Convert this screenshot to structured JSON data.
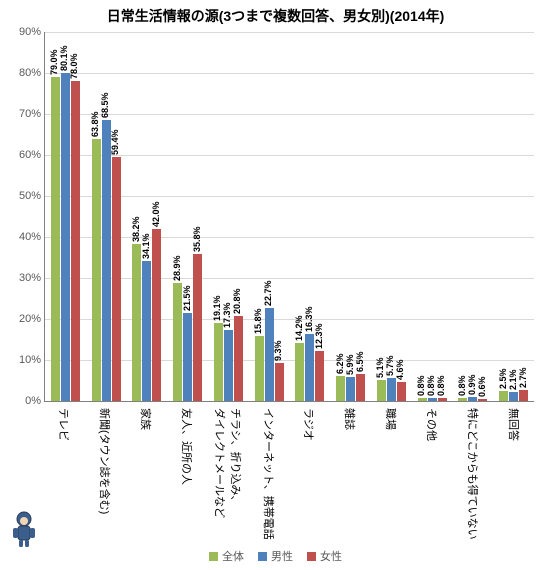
{
  "chart": {
    "type": "bar",
    "title": "日常生活情報の源(3つまで複数回答、男女別)(2014年)",
    "title_fontsize": 14,
    "background_color": "#ffffff",
    "grid_color": "#d9d9d9",
    "axis_color": "#808080",
    "label_fontsize": 11,
    "value_label_fontsize": 9,
    "ylim": [
      0,
      90
    ],
    "ytick_step": 10,
    "ytick_labels": [
      "0%",
      "10%",
      "20%",
      "30%",
      "40%",
      "50%",
      "60%",
      "70%",
      "80%",
      "90%"
    ],
    "series": [
      {
        "name": "全体",
        "color": "#9bbb59"
      },
      {
        "name": "男性",
        "color": "#4f81bd"
      },
      {
        "name": "女性",
        "color": "#c0504d"
      }
    ],
    "categories": [
      {
        "label": "テレビ",
        "values": [
          79.0,
          80.1,
          78.0
        ],
        "display": [
          "79.0%",
          "80.1%",
          "78.0%"
        ]
      },
      {
        "label": "新聞(タウン誌を含む)",
        "values": [
          63.8,
          68.5,
          59.4
        ],
        "display": [
          "63.8%",
          "68.5%",
          "59.4%"
        ]
      },
      {
        "label": "家族",
        "values": [
          38.2,
          34.1,
          42.0
        ],
        "display": [
          "38.2%",
          "34.1%",
          "42.0%"
        ]
      },
      {
        "label": "友人、近所の人",
        "values": [
          28.9,
          21.5,
          35.8
        ],
        "display": [
          "28.9%",
          "21.5%",
          "35.8%"
        ]
      },
      {
        "label": "チラシ、折り込み、\nダイレクトメールなど",
        "values": [
          19.1,
          17.3,
          20.8
        ],
        "display": [
          "19.1%",
          "17.3%",
          "20.8%"
        ]
      },
      {
        "label": "インターネット、携帯電話",
        "values": [
          15.8,
          22.7,
          9.3
        ],
        "display": [
          "15.8%",
          "22.7%",
          "9.3%"
        ]
      },
      {
        "label": "ラジオ",
        "values": [
          14.2,
          16.3,
          12.3
        ],
        "display": [
          "14.2%",
          "16.3%",
          "12.3%"
        ]
      },
      {
        "label": "雑誌",
        "values": [
          6.2,
          5.9,
          6.5
        ],
        "display": [
          "6.2%",
          "5.9%",
          "6.5%"
        ]
      },
      {
        "label": "職場",
        "values": [
          5.1,
          5.7,
          4.6
        ],
        "display": [
          "5.1%",
          "5.7%",
          "4.6%"
        ]
      },
      {
        "label": "その他",
        "values": [
          0.8,
          0.8,
          0.8
        ],
        "display": [
          "0.8%",
          "0.8%",
          "0.8%"
        ]
      },
      {
        "label": "特にどこからも得ていない",
        "values": [
          0.8,
          0.9,
          0.6
        ],
        "display": [
          "0.8%",
          "0.9%",
          "0.6%"
        ]
      },
      {
        "label": "無回答",
        "values": [
          2.5,
          2.1,
          2.7
        ],
        "display": [
          "2.5%",
          "2.1%",
          "2.7%"
        ]
      }
    ],
    "mascot_colors": {
      "body": "#3b5e8c",
      "skin": "#f2d6b3",
      "outline": "#2a3d57"
    }
  }
}
